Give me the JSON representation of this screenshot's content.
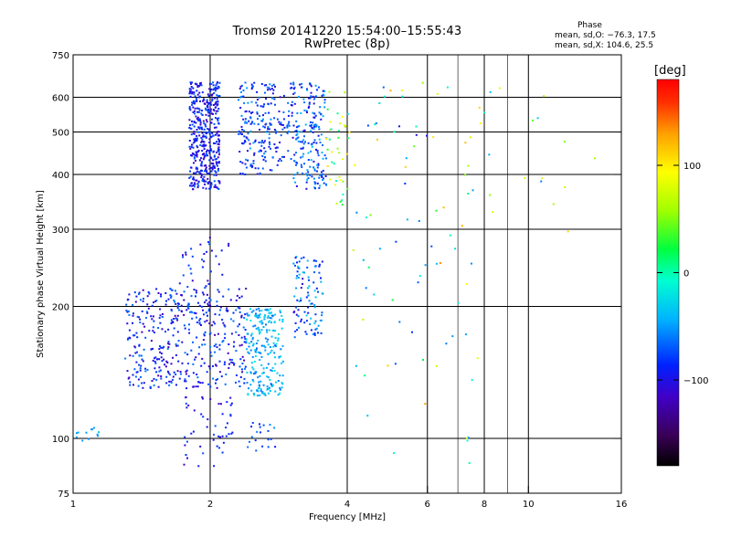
{
  "chart_data": {
    "type": "scatter",
    "title": "Tromsø 20141220 15:54:00–15:55:43",
    "subtitle": "RwPretec (8p)",
    "xlabel": "Frequency [MHz]",
    "ylabel": "Stationary phase Virtual Height [km]",
    "xscale": "log",
    "yscale": "log",
    "xlim": [
      1,
      16
    ],
    "ylim": [
      75,
      750
    ],
    "xticks": [
      1,
      2,
      4,
      6,
      8,
      10,
      16
    ],
    "xtick_labels": [
      "1",
      "2",
      "4",
      "6",
      "8",
      "10",
      "16"
    ],
    "xgrid": [
      2,
      4,
      6,
      8,
      10
    ],
    "xgrid_light": [
      7,
      9
    ],
    "yticks": [
      75,
      100,
      200,
      300,
      400,
      500,
      600,
      750
    ],
    "ytick_labels": [
      "75",
      "100",
      "200",
      "300",
      "400",
      "500",
      "600",
      "750"
    ],
    "ygrid": [
      100,
      200,
      300,
      400,
      500,
      600
    ],
    "grid": true,
    "color_variable": "phase",
    "colorbar": {
      "unit": "[deg]",
      "range": [
        -180,
        180
      ],
      "ticks": [
        100,
        0,
        -100
      ],
      "tick_labels": [
        "100",
        "0",
        "−100"
      ]
    },
    "phase_stats": {
      "heading": "Phase",
      "line_o": "mean, sd,O: −76.3, 17.5",
      "line_x": "mean, sd,X: 104.6, 25.5"
    },
    "clusters": [
      {
        "f": [
          1.8,
          2.1
        ],
        "h": [
          370,
          650
        ],
        "phase": [
          -120,
          -70
        ],
        "count": 430
      },
      {
        "f": [
          2.3,
          2.75
        ],
        "h": [
          400,
          650
        ],
        "phase": [
          -110,
          -50
        ],
        "count": 170
      },
      {
        "f": [
          2.75,
          3.05
        ],
        "h": [
          420,
          650
        ],
        "phase": [
          -120,
          -60
        ],
        "count": 60
      },
      {
        "f": [
          3.05,
          3.6
        ],
        "h": [
          370,
          650
        ],
        "phase": [
          -110,
          -40
        ],
        "count": 190
      },
      {
        "f": [
          3.6,
          4.05
        ],
        "h": [
          340,
          650
        ],
        "phase": [
          -30,
          110
        ],
        "count": 40
      },
      {
        "f": [
          1.3,
          2.4
        ],
        "h": [
          130,
          220
        ],
        "phase": [
          -120,
          -60
        ],
        "count": 420
      },
      {
        "f": [
          1.7,
          2.2
        ],
        "h": [
          180,
          290
        ],
        "phase": [
          -120,
          -70
        ],
        "count": 60
      },
      {
        "f": [
          2.4,
          2.9
        ],
        "h": [
          125,
          200
        ],
        "phase": [
          -70,
          -20
        ],
        "count": 220
      },
      {
        "f": [
          3.05,
          3.55
        ],
        "h": [
          170,
          260
        ],
        "phase": [
          -110,
          -30
        ],
        "count": 100
      },
      {
        "f": [
          1.75,
          2.25
        ],
        "h": [
          85,
          125
        ],
        "phase": [
          -120,
          -70
        ],
        "count": 50
      },
      {
        "f": [
          2.4,
          2.8
        ],
        "h": [
          92,
          110
        ],
        "phase": [
          -100,
          -50
        ],
        "count": 20
      },
      {
        "f": [
          1.0,
          1.15
        ],
        "h": [
          98,
          106
        ],
        "phase": [
          -60,
          -40
        ],
        "count": 12
      },
      {
        "f": [
          4.1,
          8.5
        ],
        "h": [
          300,
          650
        ],
        "phase": [
          -110,
          130
        ],
        "count": 45
      },
      {
        "f": [
          4.1,
          8.0
        ],
        "h": [
          85,
          300
        ],
        "phase": [
          -90,
          140
        ],
        "count": 40
      },
      {
        "f": [
          8.5,
          15.0
        ],
        "h": [
          290,
          660
        ],
        "phase": [
          -110,
          150
        ],
        "count": 12
      }
    ]
  }
}
